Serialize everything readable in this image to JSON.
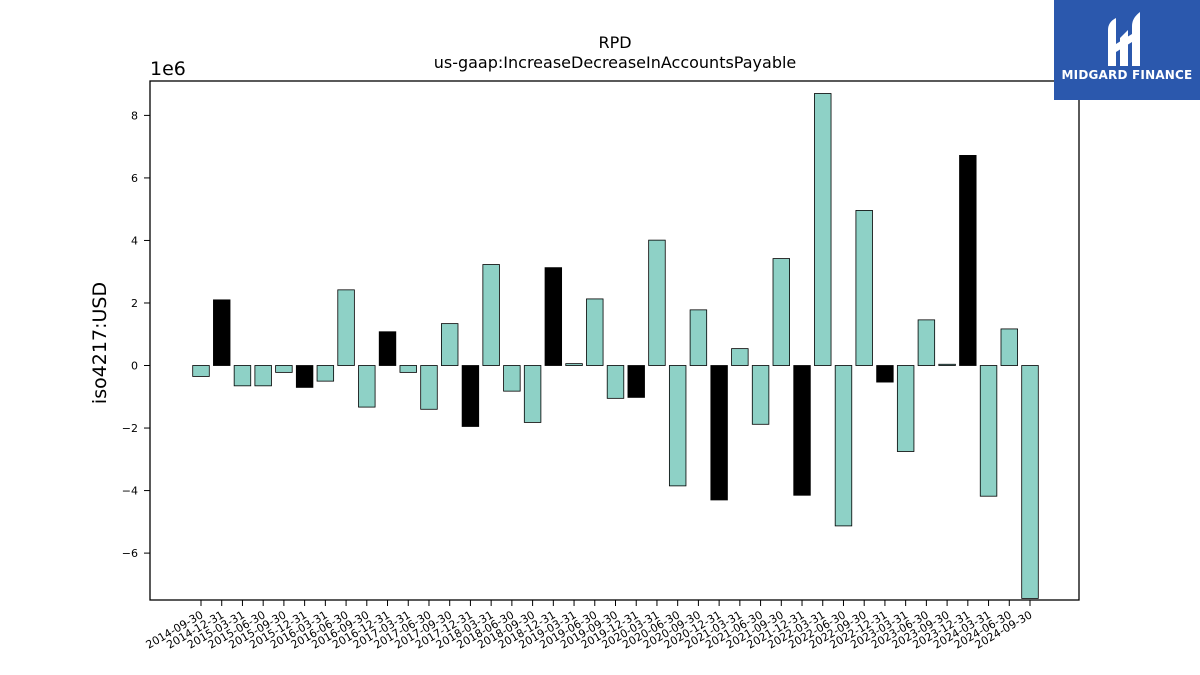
{
  "chart_data": {
    "type": "bar",
    "title": "RPD",
    "subtitle": "us-gaap:IncreaseDecreaseInAccountsPayable",
    "ylabel": "iso4217:USD",
    "xlabel": "",
    "y_multiplier_label": "1e6",
    "ylim": [
      -7500000,
      9100000
    ],
    "yticks": [
      -6000000,
      -4000000,
      -2000000,
      0,
      2000000,
      4000000,
      6000000,
      8000000
    ],
    "ytick_labels": [
      "−6",
      "−4",
      "−2",
      "0",
      "2",
      "4",
      "6",
      "8"
    ],
    "grid": false,
    "legend": "none",
    "colors": {
      "bar": "#8ed1c6",
      "highlight": "#000000",
      "edge": "#000000"
    },
    "categories": [
      "2014-09-30",
      "2014-12-31",
      "2015-03-31",
      "2015-06-30",
      "2015-09-30",
      "2015-12-31",
      "2016-03-31",
      "2016-06-30",
      "2016-09-30",
      "2016-12-31",
      "2017-03-31",
      "2017-06-30",
      "2017-09-30",
      "2017-12-31",
      "2018-03-31",
      "2018-06-30",
      "2018-09-30",
      "2018-12-31",
      "2019-03-31",
      "2019-06-30",
      "2019-09-30",
      "2019-12-31",
      "2020-03-31",
      "2020-06-30",
      "2020-09-30",
      "2020-12-31",
      "2021-03-31",
      "2021-06-30",
      "2021-09-30",
      "2021-12-31",
      "2022-03-31",
      "2022-06-30",
      "2022-09-30",
      "2022-12-31",
      "2023-03-31",
      "2023-06-30",
      "2023-09-30",
      "2023-12-31",
      "2024-03-31",
      "2024-06-30",
      "2024-09-30"
    ],
    "values": [
      -350000,
      2100000,
      -650000,
      -650000,
      -220000,
      -700000,
      -500000,
      2420000,
      -1330000,
      1080000,
      -220000,
      -1400000,
      1340000,
      -1950000,
      3230000,
      -820000,
      -1820000,
      3130000,
      60000,
      2130000,
      -1050000,
      -1020000,
      4010000,
      -3850000,
      1780000,
      -4300000,
      540000,
      -1880000,
      3420000,
      -4150000,
      8700000,
      -5130000,
      4960000,
      -530000,
      -2750000,
      1460000,
      40000,
      6720000,
      -4180000,
      1170000,
      -7450000
    ],
    "highlight": [
      false,
      true,
      false,
      false,
      false,
      true,
      false,
      false,
      false,
      true,
      false,
      false,
      false,
      true,
      false,
      false,
      false,
      true,
      false,
      false,
      false,
      true,
      false,
      false,
      false,
      true,
      false,
      false,
      false,
      true,
      false,
      false,
      false,
      true,
      false,
      false,
      false,
      true,
      false,
      false,
      false
    ]
  },
  "logo": {
    "text": "MIDGARD FINANCE",
    "icon": "midgard-logo-icon"
  }
}
